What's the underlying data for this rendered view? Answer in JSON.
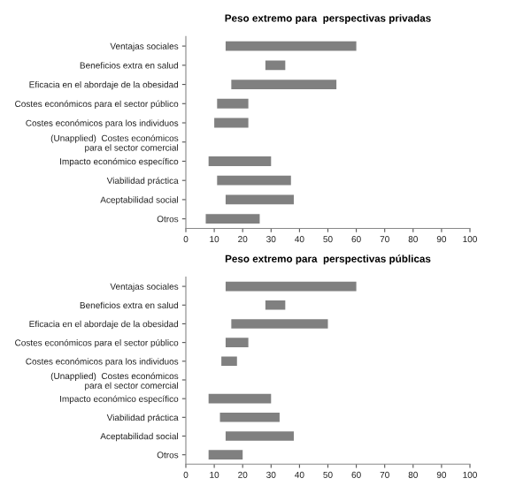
{
  "chart_data": [
    {
      "type": "bar",
      "orientation": "horizontal",
      "title": "Peso extremo para  perspectivas privadas",
      "categories": [
        "Ventajas sociales",
        "Beneficios extra en salud",
        "Eficacia en el abordaje de la obesidad",
        "Costes económicos para el sector público",
        "Costes económicos para los individuos",
        "(Unapplied)  Costes económicos\npara el sector comercial",
        "Impacto económico específico",
        "Viabilidad práctica",
        "Aceptabilidad social",
        "Otros"
      ],
      "base": [
        14,
        28,
        16,
        11,
        10,
        null,
        8,
        11,
        14,
        7
      ],
      "values": [
        46,
        7,
        37,
        11,
        12,
        null,
        22,
        26,
        24,
        19
      ],
      "color": "#808080",
      "xlim": [
        0,
        100
      ],
      "xticks": [
        0,
        10,
        20,
        30,
        40,
        50,
        60,
        70,
        80,
        90,
        100
      ],
      "grid": false,
      "legend": false
    },
    {
      "type": "bar",
      "orientation": "horizontal",
      "title": "Peso extremo para  perspectivas públicas",
      "categories": [
        "Ventajas sociales",
        "Beneficios extra en salud",
        "Eficacia en el abordaje de la obesidad",
        "Costes económicos para el sector público",
        "Costes económicos para los individuos",
        "(Unapplied)  Costes económicos\npara el sector comercial",
        "Impacto económico específico",
        "Viabilidad práctica",
        "Aceptabilidad social",
        "Otros"
      ],
      "base": [
        14,
        28,
        16,
        14,
        12.5,
        null,
        8,
        12,
        14,
        8
      ],
      "values": [
        46,
        7,
        34,
        8,
        5.5,
        null,
        22,
        21,
        24,
        12
      ],
      "color": "#808080",
      "xlim": [
        0,
        100
      ],
      "xticks": [
        0,
        10,
        20,
        30,
        40,
        50,
        60,
        70,
        80,
        90,
        100
      ],
      "grid": false,
      "legend": false
    }
  ]
}
